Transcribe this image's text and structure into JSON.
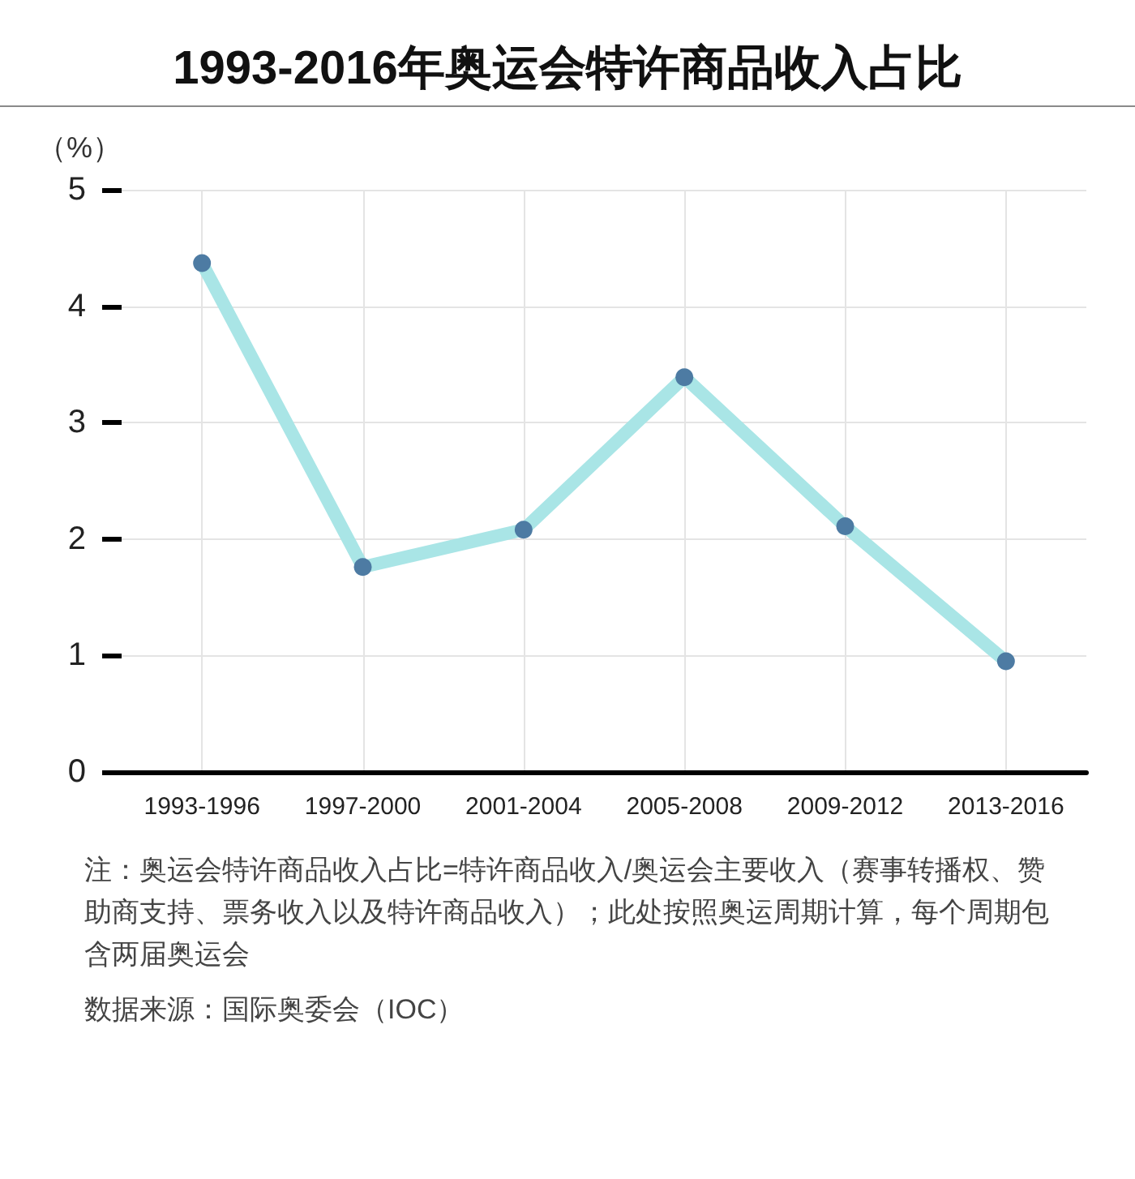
{
  "chart_data": {
    "type": "line",
    "title": "1993-2016年奥运会特许商品收入占比",
    "ylabel": "（%）",
    "categories": [
      "1993-1996",
      "1997-2000",
      "2001-2004",
      "2005-2008",
      "2009-2012",
      "2013-2016"
    ],
    "series": [
      {
        "color": "#a9e5e6",
        "colors": [
          "#4d7ba3",
          "#4d7ba3",
          "#4d7ba3",
          "#4d7ba3",
          "#4d7ba3",
          "#4d7ba3"
        ],
        "values": [
          4.37,
          1.76,
          2.08,
          3.39,
          2.11,
          0.95
        ]
      }
    ],
    "ylim": [
      0,
      5
    ],
    "yticks": [
      0,
      1,
      2,
      3,
      4,
      5
    ],
    "grid": true,
    "marker": "circle",
    "line_style": "solid",
    "annotations": [
      "注：奥运会特许商品收入占比=特许商品收入/奥运会主要收入（赛事转播权、赞助商支持、票务收入以及特许商品收入）；此处按照奥运周期计算，每个周期包含两届奥运会",
      "数据来源：国际奥委会（IOC）"
    ]
  }
}
